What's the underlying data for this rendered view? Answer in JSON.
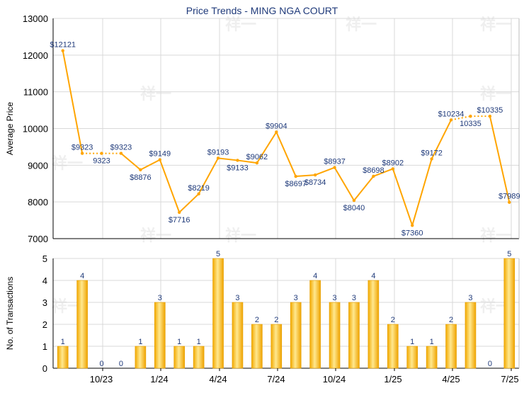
{
  "title": "Price Trends - MING NGA COURT",
  "watermark": "祥一",
  "colors": {
    "line": "#FFA500",
    "bar_light": "#FFE58A",
    "bar_dark": "#F0A800",
    "grid": "#D9D9D9",
    "axis": "#000000",
    "title": "#1F3A7A",
    "label": "#1F3A7A"
  },
  "chart_data": [
    {
      "type": "line",
      "title": "Price Trends - MING NGA COURT",
      "ylabel": "Average Price",
      "ylim": [
        7000,
        13000
      ],
      "yticks": [
        7000,
        8000,
        9000,
        10000,
        11000,
        12000,
        13000
      ],
      "grid": true,
      "series": [
        {
          "values": [
            12121,
            9323,
            9323,
            9323,
            8876,
            9149,
            7716,
            8219,
            9193,
            9133,
            9062,
            9904,
            8697,
            8734,
            8937,
            8040,
            8698,
            8902,
            7360,
            9172,
            10234,
            10335,
            10335,
            7989
          ],
          "labels": [
            "$12121",
            "$9323",
            "9323",
            "$9323",
            "$8876",
            "$9149",
            "$7716",
            "$8219",
            "$9193",
            "$9133",
            "$9062",
            "$9904",
            "$8697",
            "$8734",
            "$8937",
            "$8040",
            "$8698",
            "$8902",
            "$7360",
            "$9172",
            "$10234",
            "10335",
            "$10335",
            "$7989"
          ],
          "interpolated": [
            false,
            false,
            true,
            false,
            false,
            false,
            false,
            false,
            false,
            false,
            false,
            false,
            false,
            false,
            false,
            false,
            false,
            false,
            false,
            false,
            false,
            true,
            false,
            false
          ]
        }
      ]
    },
    {
      "type": "bar",
      "ylabel": "No. of Transactions",
      "ylim": [
        0,
        5
      ],
      "yticks": [
        0,
        1,
        2,
        3,
        4,
        5
      ],
      "xticks": [
        "10/23",
        "1/24",
        "4/24",
        "7/24",
        "10/24",
        "1/25",
        "4/25",
        "7/25"
      ],
      "grid": true,
      "series": [
        {
          "values": [
            1,
            4,
            0,
            0,
            1,
            3,
            1,
            1,
            5,
            3,
            2,
            2,
            3,
            4,
            3,
            3,
            4,
            2,
            1,
            1,
            2,
            3,
            0,
            5
          ]
        }
      ]
    }
  ]
}
